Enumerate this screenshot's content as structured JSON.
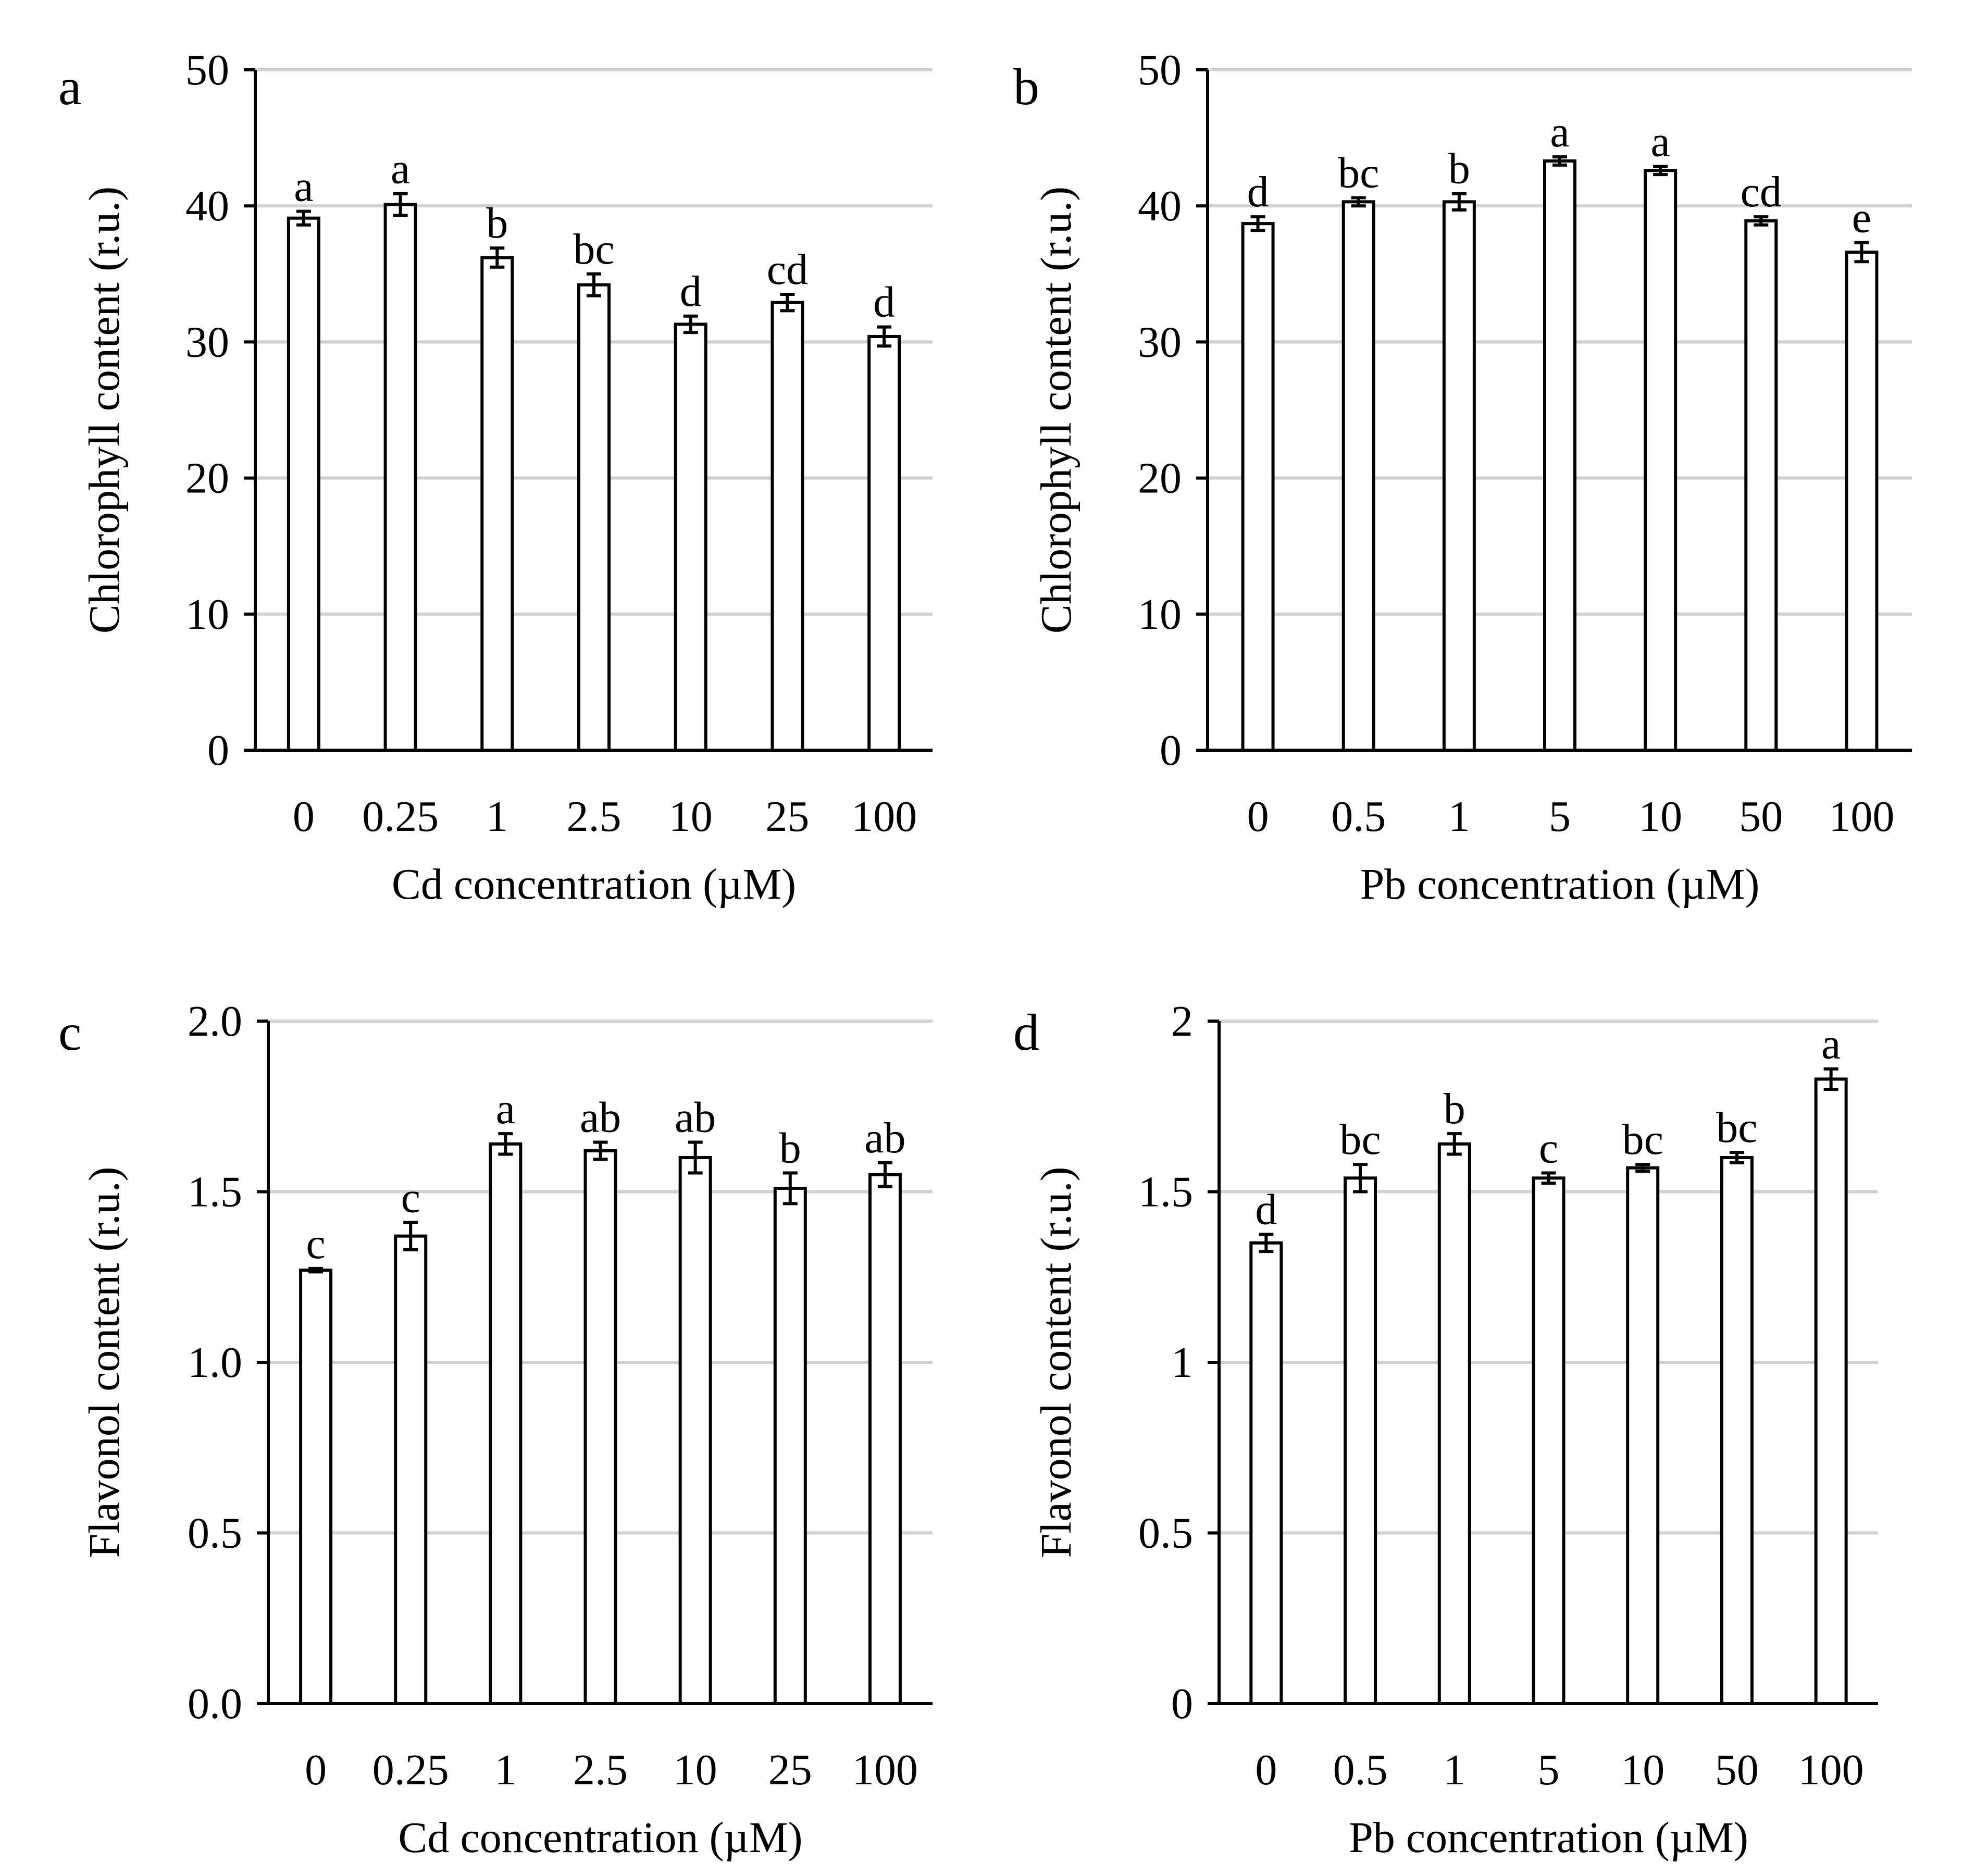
{
  "chart_data": [
    {
      "panel": "a",
      "type": "bar",
      "xlabel": "Cd concentration (µM)",
      "ylabel": "Chlorophyll content (r.u.)",
      "categories": [
        "0",
        "0.25",
        "1",
        "2.5",
        "10",
        "25",
        "100"
      ],
      "values": [
        39.1,
        40.1,
        36.2,
        34.2,
        31.3,
        32.9,
        30.4
      ],
      "errors": [
        0.5,
        0.8,
        0.7,
        0.8,
        0.6,
        0.6,
        0.7
      ],
      "letters": [
        "a",
        "a",
        "b",
        "bc",
        "d",
        "cd",
        "d"
      ],
      "ylim": [
        0,
        50
      ],
      "yticks": [
        0,
        10,
        20,
        30,
        40,
        50
      ],
      "ytick_labels": [
        "0",
        "10",
        "20",
        "30",
        "40",
        "50"
      ],
      "grid": true
    },
    {
      "panel": "b",
      "type": "bar",
      "xlabel": "Pb concentration (µM)",
      "ylabel": "Chlorophyll content (r.u.)",
      "categories": [
        "0",
        "0.5",
        "1",
        "5",
        "10",
        "50",
        "100"
      ],
      "values": [
        38.7,
        40.3,
        40.3,
        43.3,
        42.6,
        38.9,
        36.6
      ],
      "errors": [
        0.5,
        0.3,
        0.6,
        0.3,
        0.3,
        0.3,
        0.7
      ],
      "letters": [
        "d",
        "bc",
        "b",
        "a",
        "a",
        "cd",
        "e"
      ],
      "ylim": [
        0,
        50
      ],
      "yticks": [
        0,
        10,
        20,
        30,
        40,
        50
      ],
      "ytick_labels": [
        "0",
        "10",
        "20",
        "30",
        "40",
        "50"
      ],
      "grid": true
    },
    {
      "panel": "c",
      "type": "bar",
      "xlabel": "Cd concentration (µM)",
      "ylabel": "Flavonol content (r.u.)",
      "categories": [
        "0",
        "0.25",
        "1",
        "2.5",
        "10",
        "25",
        "100"
      ],
      "values": [
        1.27,
        1.37,
        1.64,
        1.62,
        1.6,
        1.51,
        1.55
      ],
      "errors": [
        0.005,
        0.04,
        0.03,
        0.025,
        0.045,
        0.045,
        0.035
      ],
      "letters": [
        "c",
        "c",
        "a",
        "ab",
        "ab",
        "b",
        "ab"
      ],
      "ylim": [
        0,
        2
      ],
      "yticks": [
        0,
        0.5,
        1,
        1.5,
        2
      ],
      "ytick_labels": [
        "0.0",
        "0.5",
        "1.0",
        "1.5",
        "2.0"
      ],
      "grid": true
    },
    {
      "panel": "d",
      "type": "bar",
      "xlabel": "Pb concentration (µM)",
      "ylabel": "Flavonol content (r.u.)",
      "categories": [
        "0",
        "0.5",
        "1",
        "5",
        "10",
        "50",
        "100"
      ],
      "values": [
        1.35,
        1.54,
        1.64,
        1.54,
        1.57,
        1.6,
        1.83
      ],
      "errors": [
        0.025,
        0.04,
        0.03,
        0.015,
        0.01,
        0.015,
        0.03
      ],
      "letters": [
        "d",
        "bc",
        "b",
        "c",
        "bc",
        "bc",
        "a"
      ],
      "ylim": [
        0,
        2
      ],
      "yticks": [
        0,
        0.5,
        1,
        1.5,
        2
      ],
      "ytick_labels": [
        "0",
        "0.5",
        "1",
        "1.5",
        "2"
      ],
      "grid": true
    }
  ]
}
